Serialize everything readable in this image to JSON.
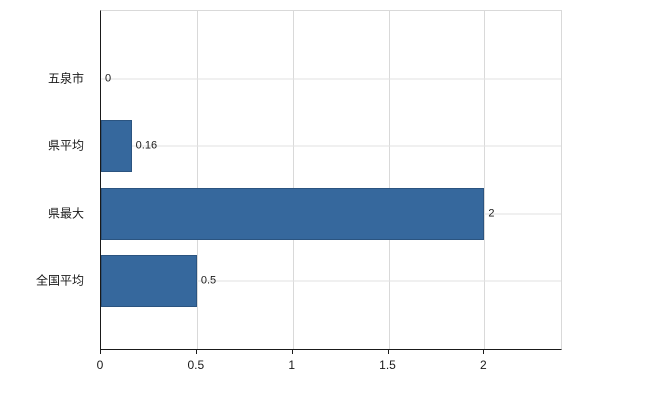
{
  "chart_data": {
    "type": "bar",
    "orientation": "horizontal",
    "title": "",
    "categories": [
      "五泉市",
      "県平均",
      "県最大",
      "全国平均"
    ],
    "values": [
      0,
      0.16,
      2,
      0.5
    ],
    "value_labels": [
      "0",
      "0.16",
      "2",
      "0.5"
    ],
    "xlabel": "",
    "ylabel": "",
    "xlim": [
      0,
      2.4
    ],
    "xticks": [
      0,
      0.5,
      1,
      1.5,
      2
    ],
    "xtick_labels": [
      "0",
      "0.5",
      "1",
      "1.5",
      "2"
    ],
    "bar_color": "#36689d",
    "bar_border_color": "#2b5480",
    "gridline_color": "#d9d9d9",
    "grid": true,
    "legend_position": "none",
    "background_color": "#ffffff"
  }
}
